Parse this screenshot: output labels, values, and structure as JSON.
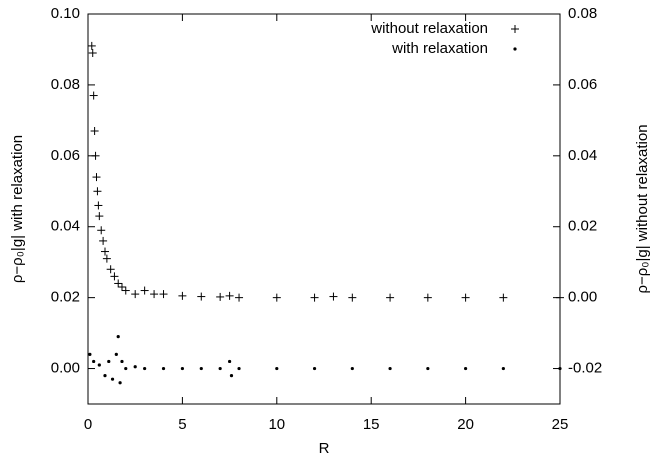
{
  "chart_data": {
    "type": "scatter",
    "xlabel": "R",
    "ylabel": "ρ−ρ₀|g|   with relaxation",
    "y2label": "ρ−ρ₀|g|   without relaxation",
    "xlim": [
      0,
      25
    ],
    "xticks": [
      0,
      5,
      10,
      15,
      20,
      25
    ],
    "ylim": [
      -0.01,
      0.1
    ],
    "yticks": [
      {
        "value": 0.0,
        "label": "0.00"
      },
      0.02,
      0.04,
      0.06,
      0.08,
      {
        "value": 0.1,
        "label": "0.10"
      }
    ],
    "y2lim": [
      -0.03,
      0.08
    ],
    "y2ticks": [
      -0.02,
      {
        "value": 0.0,
        "label": "0.00"
      },
      0.02,
      0.04,
      0.06,
      0.08
    ],
    "legend": "top-right",
    "series": [
      {
        "name": "without relaxation",
        "marker": "plus",
        "color": "#000000",
        "axis": "y2",
        "x": [
          0.2,
          0.25,
          0.3,
          0.35,
          0.4,
          0.45,
          0.5,
          0.55,
          0.6,
          0.7,
          0.8,
          0.9,
          1.0,
          1.2,
          1.4,
          1.6,
          1.8,
          2.0,
          2.5,
          3.0,
          3.5,
          4,
          5,
          6,
          7,
          7.5,
          8,
          10,
          12,
          13,
          14,
          16,
          18,
          20,
          22,
          25
        ],
        "values": [
          0.071,
          0.069,
          0.057,
          0.047,
          0.04,
          0.034,
          0.03,
          0.026,
          0.023,
          0.019,
          0.016,
          0.013,
          0.011,
          0.008,
          0.006,
          0.004,
          0.003,
          0.002,
          0.001,
          0.002,
          0.001,
          0.001,
          0.0005,
          0.0003,
          0.0002,
          0.0005,
          0,
          0,
          0,
          0.0003,
          0,
          0,
          0,
          0,
          0,
          0
        ]
      },
      {
        "name": "with relaxation",
        "marker": "dot",
        "color": "#000000",
        "axis": "y",
        "x": [
          0.1,
          0.3,
          0.6,
          0.9,
          1.1,
          1.3,
          1.5,
          1.6,
          1.7,
          1.8,
          2,
          2.5,
          3,
          4,
          5,
          6,
          7,
          7.5,
          7.6,
          8,
          10,
          12,
          14,
          16,
          18,
          20,
          22,
          25
        ],
        "values": [
          0.004,
          0.002,
          0.001,
          -0.002,
          0.002,
          -0.003,
          0.004,
          0.009,
          -0.004,
          0.002,
          0,
          0.0005,
          0,
          0,
          0,
          0,
          0,
          0.002,
          -0.002,
          0,
          0,
          0,
          0,
          0,
          0,
          0,
          0,
          0
        ]
      }
    ]
  }
}
